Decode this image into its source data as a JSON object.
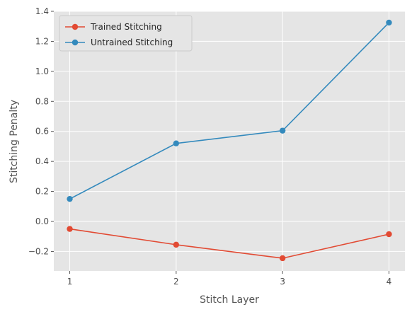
{
  "chart_data": {
    "type": "line",
    "title": "",
    "xlabel": "Stitch Layer",
    "ylabel": "Stitching Penalty",
    "x": [
      1,
      2,
      3,
      4
    ],
    "xticks": [
      "1",
      "2",
      "3",
      "4"
    ],
    "xlim": [
      0.85,
      4.15
    ],
    "ylim": [
      -0.33,
      1.4
    ],
    "yticks": [
      "−0.2",
      "0.0",
      "0.2",
      "0.4",
      "0.6",
      "0.8",
      "1.0",
      "1.2",
      "1.4"
    ],
    "ytick_values": [
      -0.2,
      0.0,
      0.2,
      0.4,
      0.6,
      0.8,
      1.0,
      1.2,
      1.4
    ],
    "grid": true,
    "legend_position": "top-left",
    "series": [
      {
        "name": "Trained Stitching",
        "color": "#E24A33",
        "values": [
          -0.05,
          -0.155,
          -0.245,
          -0.085
        ]
      },
      {
        "name": "Untrained Stitching",
        "color": "#348ABD",
        "values": [
          0.15,
          0.52,
          0.605,
          1.325
        ]
      }
    ],
    "background_color": "#E5E5E5",
    "grid_color": "#FFFFFF"
  }
}
